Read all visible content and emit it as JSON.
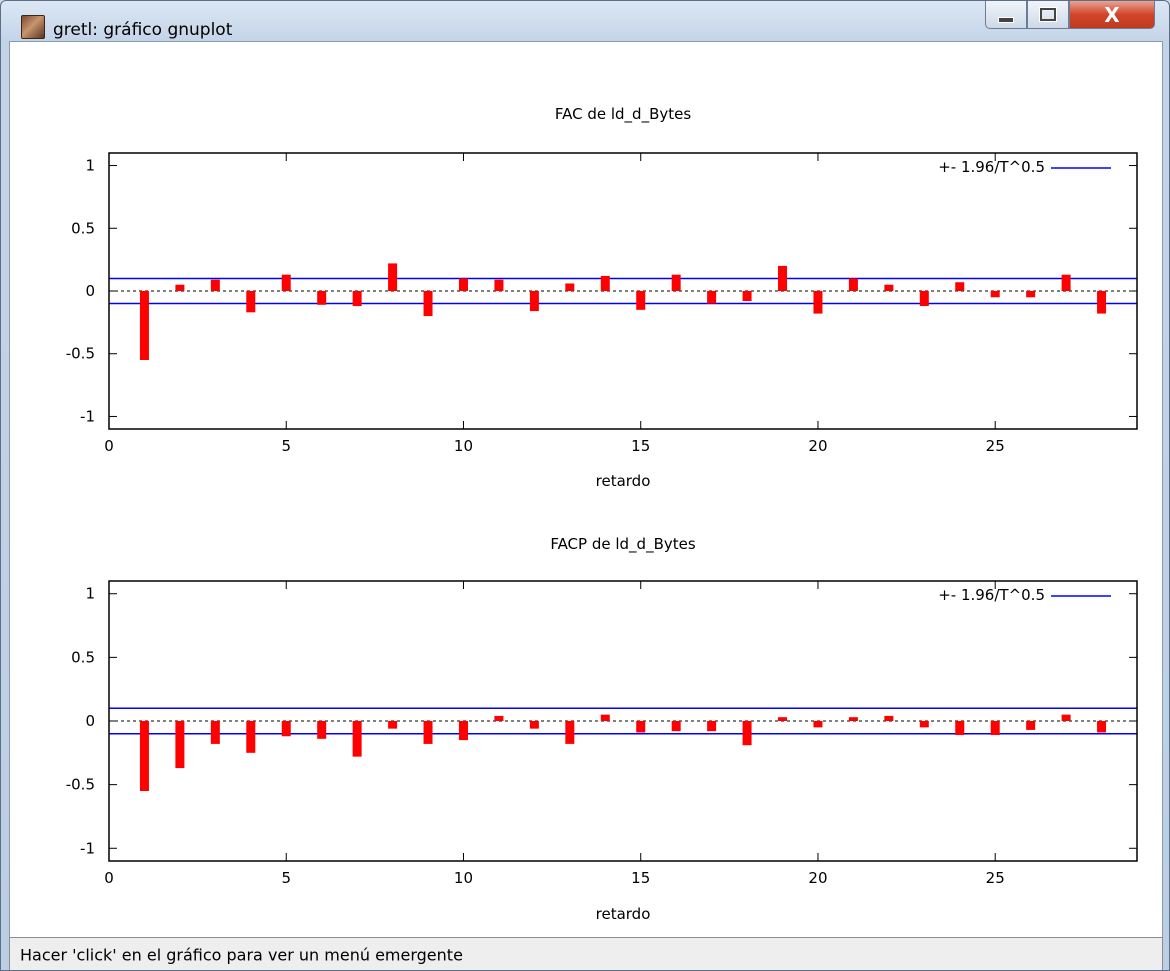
{
  "window": {
    "title": "gretl: gráfico gnuplot",
    "icon": "gretl-app-icon",
    "buttons": {
      "minimize": "minimize-icon",
      "maximize": "maximize-icon",
      "close_label": "X"
    }
  },
  "status_bar": {
    "text": "Hacer 'click' en el gráfico para ver un menú emergente"
  },
  "colors": {
    "bars": "#ff0000",
    "confidence": "#0000ff",
    "zero_line": "#000000"
  },
  "chart_data": [
    {
      "type": "bar",
      "title": "FAC de ld_d_Bytes",
      "xlabel": "retardo",
      "ylabel": "",
      "xlim": [
        0,
        29
      ],
      "ylim": [
        -1.1,
        1.1
      ],
      "xticks": [
        "0",
        "5",
        "10",
        "15",
        "20",
        "25"
      ],
      "xtick_values": [
        0,
        5,
        10,
        15,
        20,
        25
      ],
      "yticks": [
        "1",
        "0.5",
        "0",
        "-0.5",
        "-1"
      ],
      "ytick_values": [
        1,
        0.5,
        0,
        -0.5,
        -1
      ],
      "legend": {
        "label": "+- 1.96/T^0.5",
        "position": "top-right"
      },
      "confidence_band": 0.1,
      "x": [
        1,
        2,
        3,
        4,
        5,
        6,
        7,
        8,
        9,
        10,
        11,
        12,
        13,
        14,
        15,
        16,
        17,
        18,
        19,
        20,
        21,
        22,
        23,
        24,
        25,
        26,
        27,
        28
      ],
      "values": [
        -0.55,
        0.05,
        0.09,
        -0.17,
        0.13,
        -0.11,
        -0.12,
        0.22,
        -0.2,
        0.1,
        0.09,
        -0.16,
        0.06,
        0.12,
        -0.15,
        0.13,
        -0.1,
        -0.08,
        0.2,
        -0.18,
        0.1,
        0.05,
        -0.12,
        0.07,
        -0.05,
        -0.05,
        0.13,
        -0.18
      ]
    },
    {
      "type": "bar",
      "title": "FACP de ld_d_Bytes",
      "xlabel": "retardo",
      "ylabel": "",
      "xlim": [
        0,
        29
      ],
      "ylim": [
        -1.1,
        1.1
      ],
      "xticks": [
        "0",
        "5",
        "10",
        "15",
        "20",
        "25"
      ],
      "xtick_values": [
        0,
        5,
        10,
        15,
        20,
        25
      ],
      "yticks": [
        "1",
        "0.5",
        "0",
        "-0.5",
        "-1"
      ],
      "ytick_values": [
        1,
        0.5,
        0,
        -0.5,
        -1
      ],
      "legend": {
        "label": "+- 1.96/T^0.5",
        "position": "top-right"
      },
      "confidence_band": 0.1,
      "x": [
        1,
        2,
        3,
        4,
        5,
        6,
        7,
        8,
        9,
        10,
        11,
        12,
        13,
        14,
        15,
        16,
        17,
        18,
        19,
        20,
        21,
        22,
        23,
        24,
        25,
        26,
        27,
        28
      ],
      "values": [
        -0.55,
        -0.37,
        -0.18,
        -0.25,
        -0.12,
        -0.14,
        -0.28,
        -0.06,
        -0.18,
        -0.15,
        0.04,
        -0.06,
        -0.18,
        0.05,
        -0.09,
        -0.08,
        -0.08,
        -0.19,
        0.03,
        -0.05,
        0.03,
        0.04,
        -0.05,
        -0.11,
        -0.11,
        -0.07,
        0.05,
        -0.09
      ]
    }
  ]
}
